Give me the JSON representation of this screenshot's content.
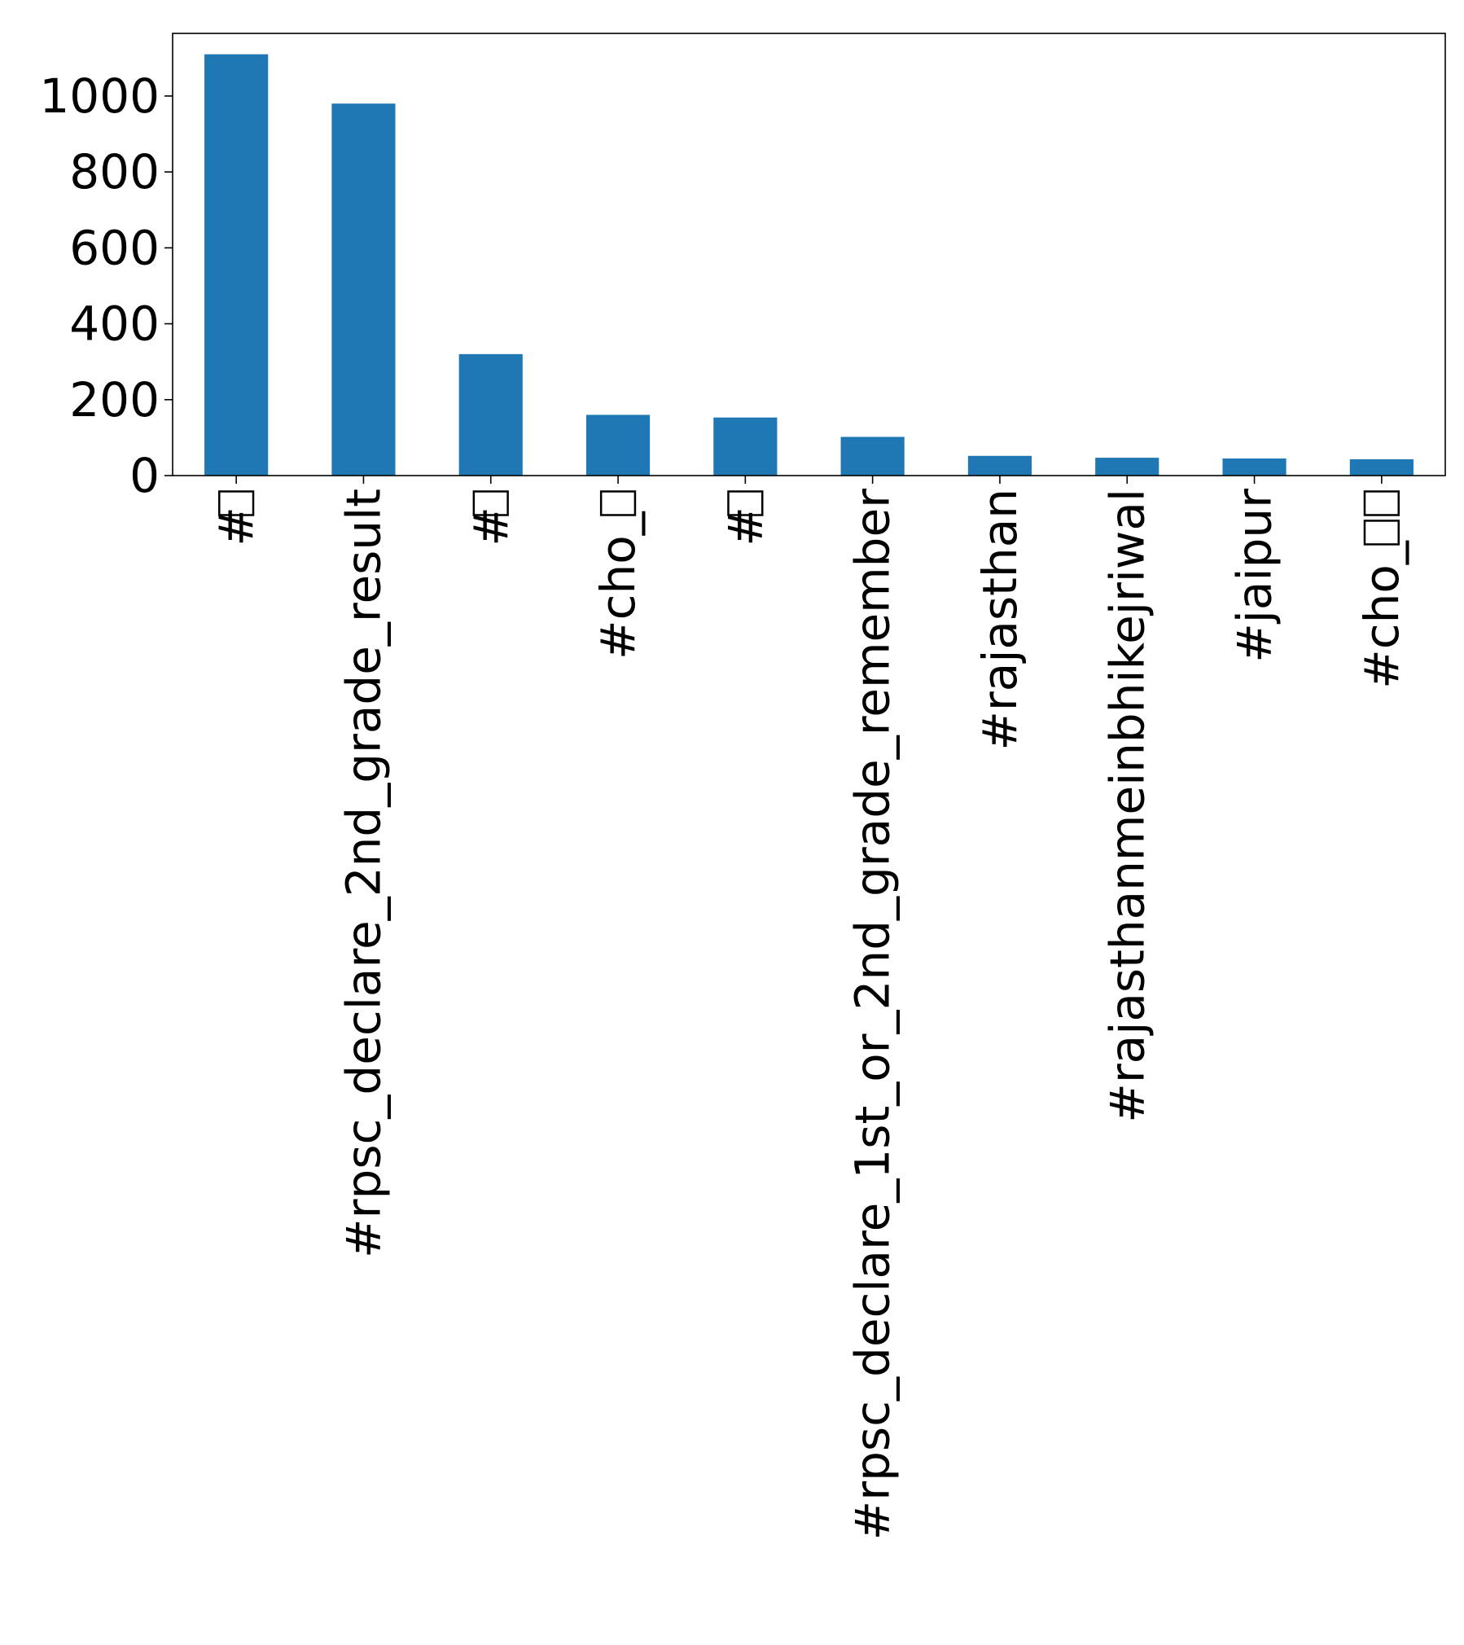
{
  "chart_data": {
    "type": "bar",
    "title": "",
    "xlabel": "",
    "ylabel": "",
    "categories": [
      "#▯",
      "#rpsc_declare_2nd_grade_result",
      "#▯",
      "#cho_▯",
      "#▯",
      "#rpsc_declare_1st_or_2nd_grade_remember",
      "#rajasthan",
      "#rajasthanmeinbhikejriwal",
      "#jaipur",
      "#cho_▯▯"
    ],
    "values": [
      1110,
      980,
      320,
      160,
      153,
      102,
      52,
      47,
      45,
      43
    ],
    "ylim": [
      0,
      1165
    ],
    "yticks": [
      0,
      200,
      400,
      600,
      800,
      1000
    ],
    "ytick_labels": [
      "0",
      "200",
      "400",
      "600",
      "800",
      "1000"
    ],
    "grid": false,
    "legend": "none",
    "bar_color": "#1f77b4"
  }
}
